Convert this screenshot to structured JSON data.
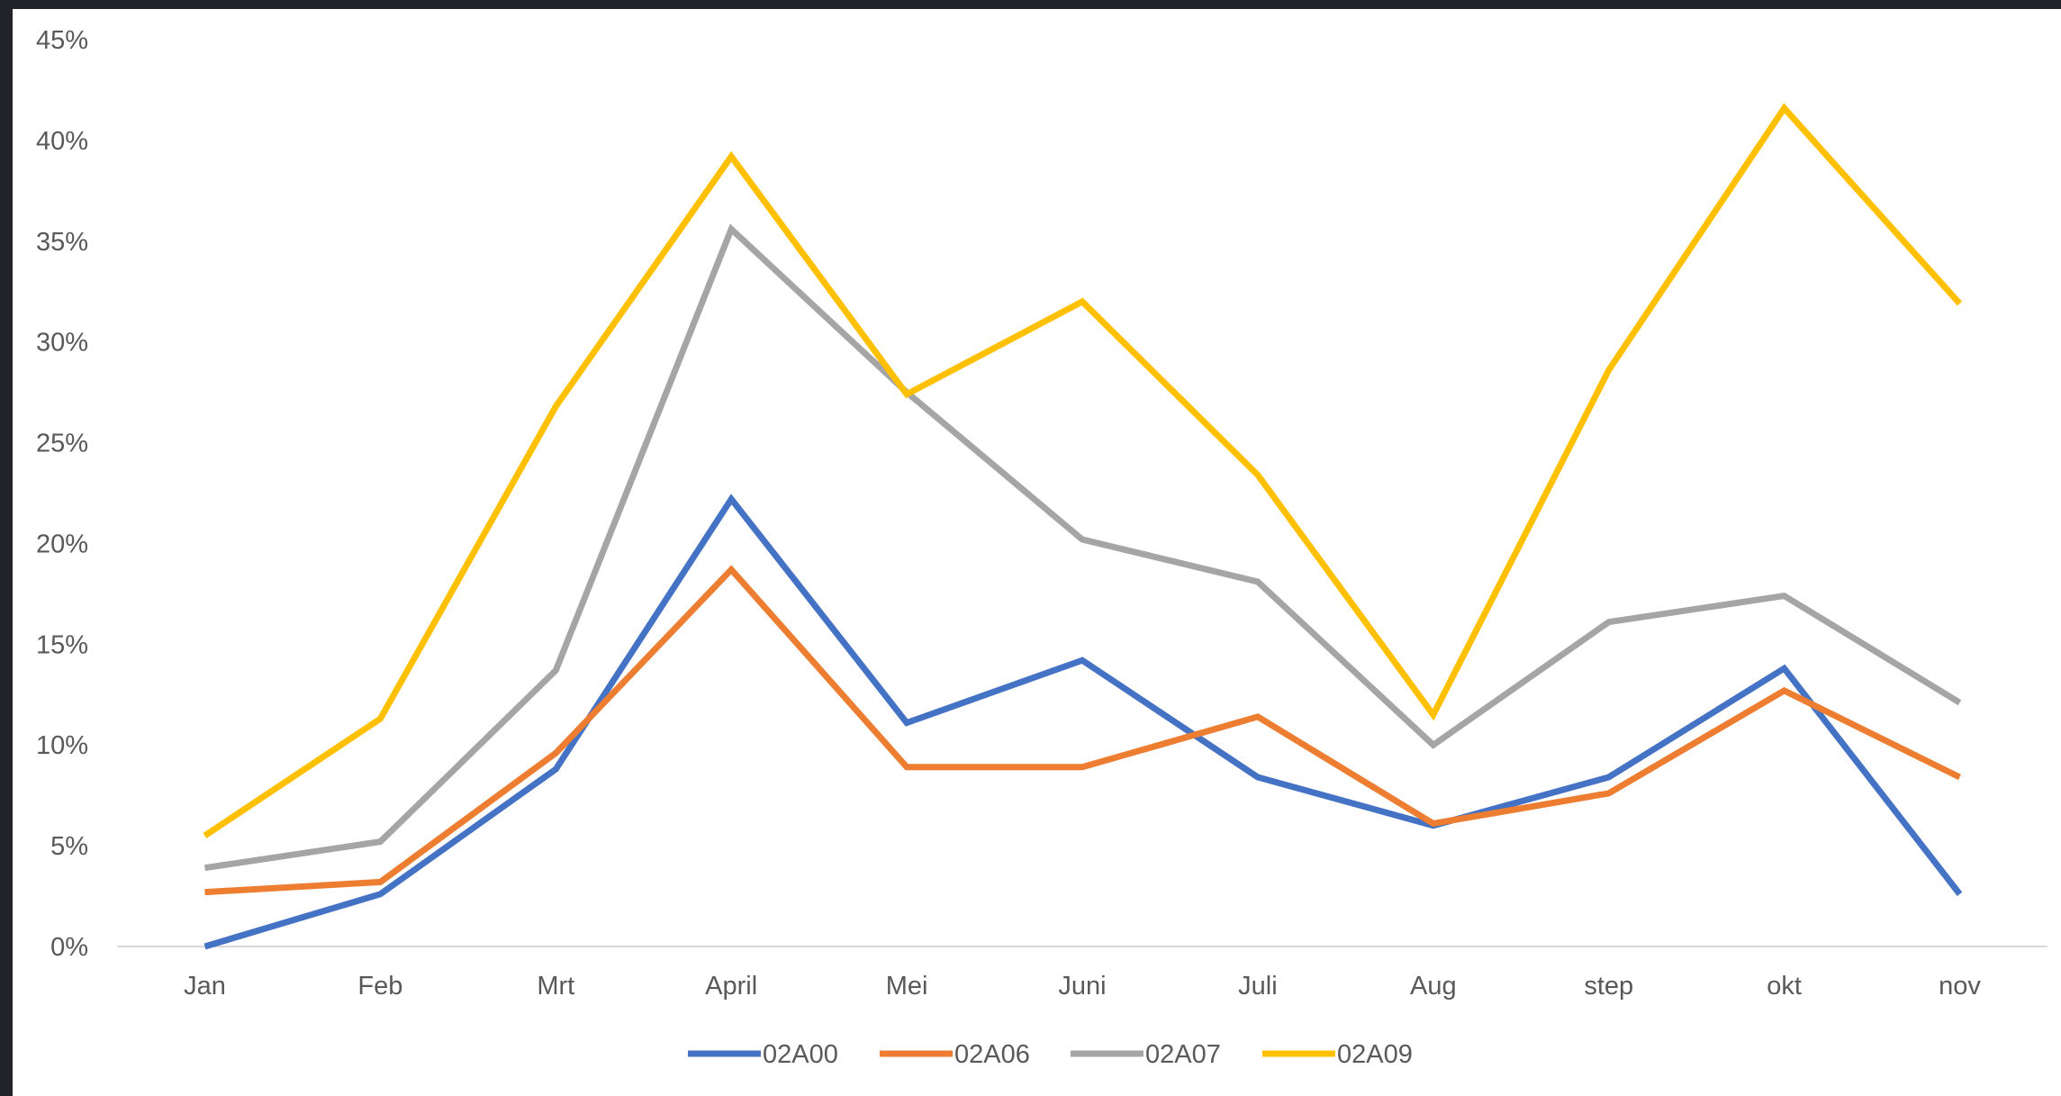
{
  "chart_data": {
    "type": "line",
    "title": "",
    "xlabel": "",
    "ylabel": "",
    "categories": [
      "Jan",
      "Feb",
      "Mrt",
      "April",
      "Mei",
      "Juni",
      "Juli",
      "Aug",
      "step",
      "okt",
      "nov"
    ],
    "ylim": [
      0,
      45
    ],
    "yticks": [
      "0%",
      "5%",
      "10%",
      "15%",
      "20%",
      "25%",
      "30%",
      "35%",
      "40%",
      "45%"
    ],
    "grid": false,
    "legend_position": "bottom",
    "series": [
      {
        "name": "02A00",
        "color": "#4472C4",
        "values": [
          0.0,
          2.6,
          8.8,
          22.2,
          11.1,
          14.2,
          8.4,
          6.0,
          8.4,
          13.8,
          2.6
        ]
      },
      {
        "name": "02A06",
        "color": "#ED7D31",
        "values": [
          2.7,
          3.2,
          9.6,
          18.7,
          8.9,
          8.9,
          11.4,
          6.1,
          7.6,
          12.7,
          8.4
        ]
      },
      {
        "name": "02A07",
        "color": "#A5A5A5",
        "values": [
          3.9,
          5.2,
          13.7,
          35.6,
          27.5,
          20.2,
          18.1,
          10.0,
          16.1,
          17.4,
          12.1
        ]
      },
      {
        "name": "02A09",
        "color": "#FFC000",
        "values": [
          5.5,
          11.3,
          26.8,
          39.2,
          27.4,
          32.0,
          23.4,
          11.5,
          28.6,
          41.6,
          31.9
        ]
      }
    ]
  }
}
